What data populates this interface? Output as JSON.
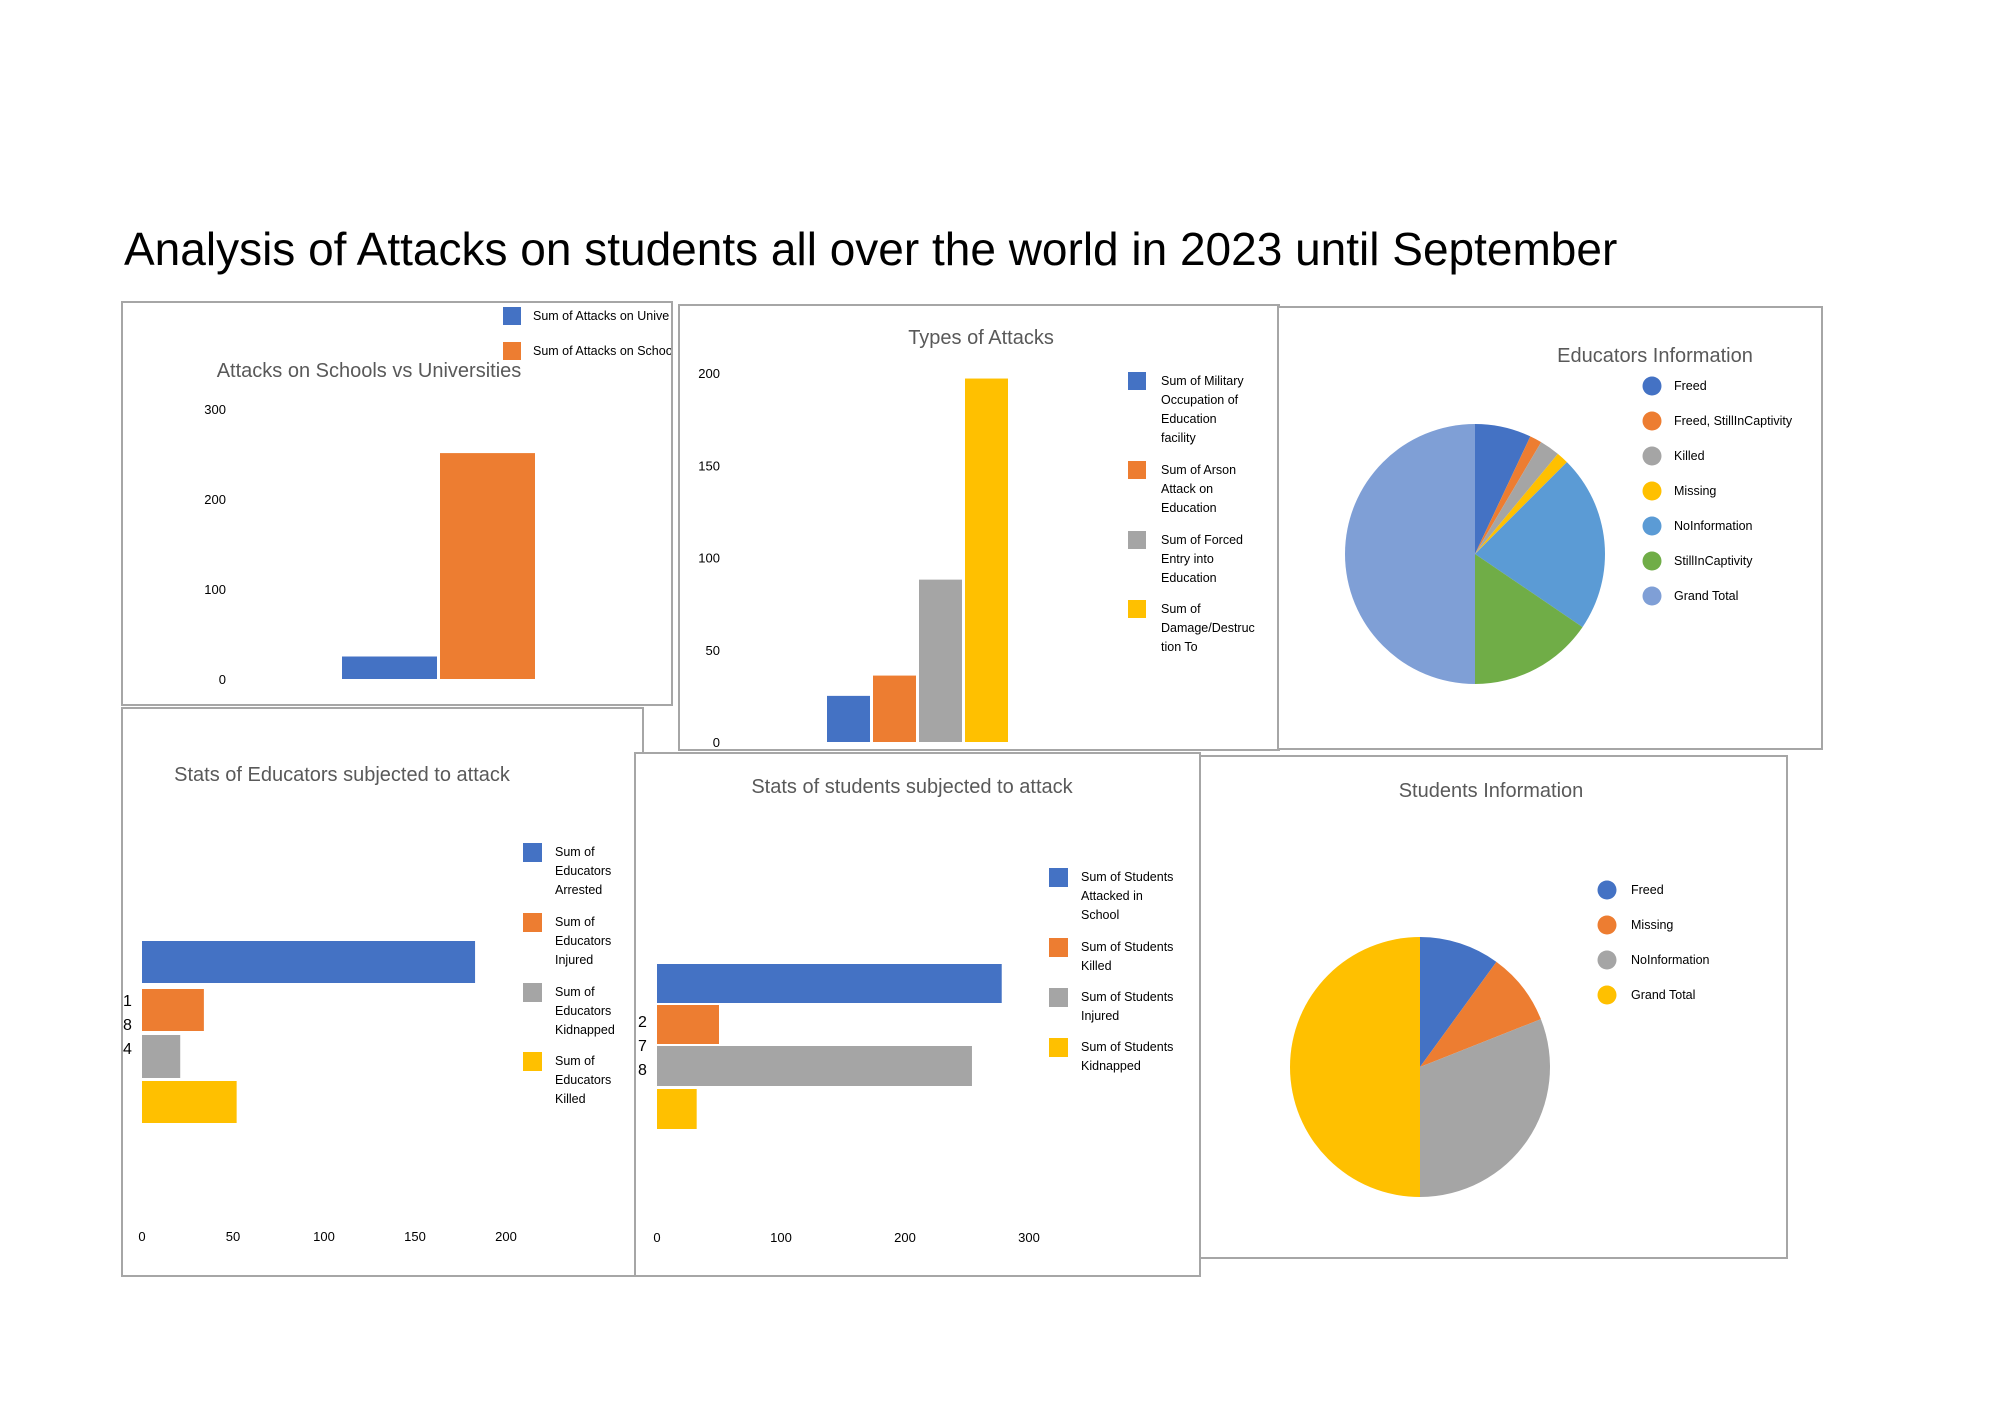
{
  "page": {
    "title": "Analysis of Attacks on students all over the world in 2023 until September"
  },
  "chart_data": [
    {
      "id": "schools-vs-universities",
      "type": "bar",
      "title": "Attacks on Schools vs Universities",
      "series": [
        {
          "name": "Sum of Attacks on Universities",
          "legend_label": "Sum of Attacks on Unive",
          "value": 25,
          "color": "#4472C4"
        },
        {
          "name": "Sum of Attacks on Schools",
          "legend_label": "Sum of Attacks on Schoo",
          "value": 251,
          "color": "#ED7D31"
        }
      ],
      "ylim": [
        0,
        300
      ],
      "yticks": [
        0,
        100,
        200,
        300
      ],
      "legend": "top-right"
    },
    {
      "id": "types-of-attacks",
      "type": "bar",
      "title": "Types of Attacks",
      "series": [
        {
          "name": "Sum of Military Occupation of Education facility",
          "legend_lines": [
            "Sum of Military",
            "Occupation of",
            "Education",
            "facility"
          ],
          "value": 25,
          "color": "#4472C4"
        },
        {
          "name": "Sum of Arson Attack on Education",
          "legend_lines": [
            "Sum of Arson",
            "Attack on",
            "Education"
          ],
          "value": 36,
          "color": "#ED7D31"
        },
        {
          "name": "Sum of Forced Entry into Education",
          "legend_lines": [
            "Sum of Forced",
            "Entry into",
            "Education"
          ],
          "value": 88,
          "color": "#A5A5A5"
        },
        {
          "name": "Sum of Damage/Destruction To",
          "legend_lines": [
            "Sum of",
            "Damage/Destruc",
            "tion To"
          ],
          "value": 197,
          "color": "#FFC000"
        }
      ],
      "ylim": [
        0,
        200
      ],
      "yticks": [
        0,
        50,
        100,
        150,
        200
      ],
      "legend": "right"
    },
    {
      "id": "educators-information",
      "type": "pie",
      "title": "Educators Information",
      "slices": [
        {
          "label": "Freed",
          "value": 7,
          "color": "#4472C4"
        },
        {
          "label": "Freed, StillInCaptivity",
          "value": 1.5,
          "color": "#ED7D31"
        },
        {
          "label": "Killed",
          "value": 2.5,
          "color": "#A5A5A5"
        },
        {
          "label": "Missing",
          "value": 1.5,
          "color": "#FFC000"
        },
        {
          "label": "NoInformation",
          "value": 22,
          "color": "#5B9BD5"
        },
        {
          "label": "StillInCaptivity",
          "value": 15.5,
          "color": "#70AD47"
        },
        {
          "label": "Grand Total",
          "value": 50,
          "color": "#7F9FD6"
        }
      ],
      "legend": "right"
    },
    {
      "id": "educators-subjected",
      "type": "bar",
      "orientation": "horizontal",
      "title": "Stats of Educators subjected to attack",
      "series": [
        {
          "name": "Sum of Educators Arrested",
          "legend_lines": [
            "Sum of",
            "Educators",
            "Arrested"
          ],
          "value": 183,
          "color": "#4472C4"
        },
        {
          "name": "Sum of Educators Injured",
          "legend_lines": [
            "Sum of",
            "Educators",
            "Injured"
          ],
          "value": 34,
          "color": "#ED7D31"
        },
        {
          "name": "Sum of Educators Kidnapped",
          "legend_lines": [
            "Sum of",
            "Educators",
            "Kidnapped"
          ],
          "value": 21,
          "color": "#A5A5A5"
        },
        {
          "name": "Sum of Educators Killed",
          "legend_lines": [
            "Sum of",
            "Educators",
            "Killed"
          ],
          "value": 52,
          "color": "#FFC000"
        }
      ],
      "category_label_chars": [
        "1",
        "8",
        "4"
      ],
      "xlim": [
        0,
        200
      ],
      "xticks": [
        0,
        50,
        100,
        150,
        200
      ],
      "legend": "right"
    },
    {
      "id": "students-subjected",
      "type": "bar",
      "orientation": "horizontal",
      "title": "Stats of students subjected to attack",
      "series": [
        {
          "name": "Sum of Students Attacked in School",
          "legend_lines": [
            "Sum of Students",
            "Attacked in",
            "School"
          ],
          "value": 278,
          "color": "#4472C4"
        },
        {
          "name": "Sum of Students Killed",
          "legend_lines": [
            "Sum of Students",
            "Killed"
          ],
          "value": 50,
          "color": "#ED7D31"
        },
        {
          "name": "Sum of Students Injured",
          "legend_lines": [
            "Sum of Students",
            "Injured"
          ],
          "value": 254,
          "color": "#A5A5A5"
        },
        {
          "name": "Sum of Students Kidnapped",
          "legend_lines": [
            "Sum of Students",
            "Kidnapped"
          ],
          "value": 32,
          "color": "#FFC000"
        }
      ],
      "category_label_chars": [
        "2",
        "7",
        "8"
      ],
      "xlim": [
        0,
        300
      ],
      "xticks": [
        0,
        100,
        200,
        300
      ],
      "legend": "right"
    },
    {
      "id": "students-information",
      "type": "pie",
      "title": "Students Information",
      "slices": [
        {
          "label": "Freed",
          "value": 10,
          "color": "#4472C4"
        },
        {
          "label": "Missing",
          "value": 9,
          "color": "#ED7D31"
        },
        {
          "label": "NoInformation",
          "value": 31,
          "color": "#A5A5A5"
        },
        {
          "label": "Grand Total",
          "value": 50,
          "color": "#FFC000"
        }
      ],
      "legend": "right"
    }
  ]
}
